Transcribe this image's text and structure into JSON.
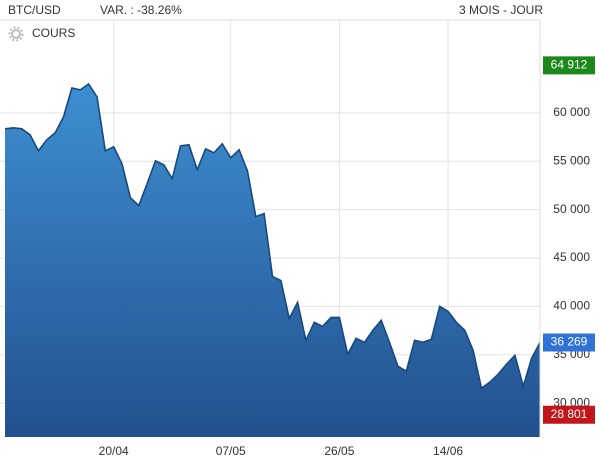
{
  "chart_data": {
    "type": "area",
    "title": "BTC/USD",
    "subtitle": "VAR. : -38.26%",
    "period": "3 MOIS - JOUR",
    "categories": [
      null,
      null,
      null,
      null,
      null,
      null,
      null,
      null,
      null,
      null,
      null,
      null,
      null,
      "20/04",
      null,
      null,
      null,
      null,
      null,
      null,
      null,
      null,
      null,
      null,
      null,
      null,
      null,
      "07/05",
      null,
      null,
      null,
      null,
      null,
      null,
      null,
      null,
      null,
      null,
      null,
      null,
      "26/05",
      null,
      null,
      null,
      null,
      null,
      null,
      null,
      null,
      null,
      null,
      null,
      null,
      "14/06",
      null,
      null,
      null,
      null,
      null,
      null,
      null,
      null,
      null,
      null,
      null
    ],
    "series": [
      {
        "name": "COURS",
        "color": "#174a7e",
        "values": [
          58350,
          58454,
          58350,
          57732,
          56082,
          57216,
          57938,
          59588,
          62577,
          62371,
          62990,
          61649,
          56082,
          56495,
          54742,
          51237,
          50412,
          52680,
          55052,
          54639,
          53196,
          56598,
          56701,
          54124,
          56289,
          55876,
          56804,
          55361,
          56186,
          54021,
          49278,
          49588,
          43093,
          42680,
          38763,
          40412,
          36495,
          38351,
          37938,
          38866,
          38866,
          35052,
          36701,
          36289,
          37526,
          38557,
          36289,
          33814,
          33299,
          36495,
          36289,
          36598,
          40000,
          39485,
          38351,
          37526,
          35464,
          31546,
          32165,
          32990,
          34021,
          34948,
          31753,
          34639,
          36269
        ]
      }
    ],
    "ylim": [
      26500,
      69600
    ],
    "yticks": [
      {
        "value": 30000,
        "label": "30 000"
      },
      {
        "value": 35000,
        "label": "35 000"
      },
      {
        "value": 40000,
        "label": "40 000"
      },
      {
        "value": 45000,
        "label": "45 000"
      },
      {
        "value": 50000,
        "label": "50 000"
      },
      {
        "value": 55000,
        "label": "55 000"
      },
      {
        "value": 60000,
        "label": "60 000"
      }
    ],
    "annotations": [
      {
        "value": 64912,
        "label": "64 912",
        "color": "#1b8a1b"
      },
      {
        "value": 36269,
        "label": "36 269",
        "color": "#2f73d8"
      },
      {
        "value": 28801,
        "label": "28 801",
        "color": "#c3161c"
      }
    ],
    "grid": true
  }
}
